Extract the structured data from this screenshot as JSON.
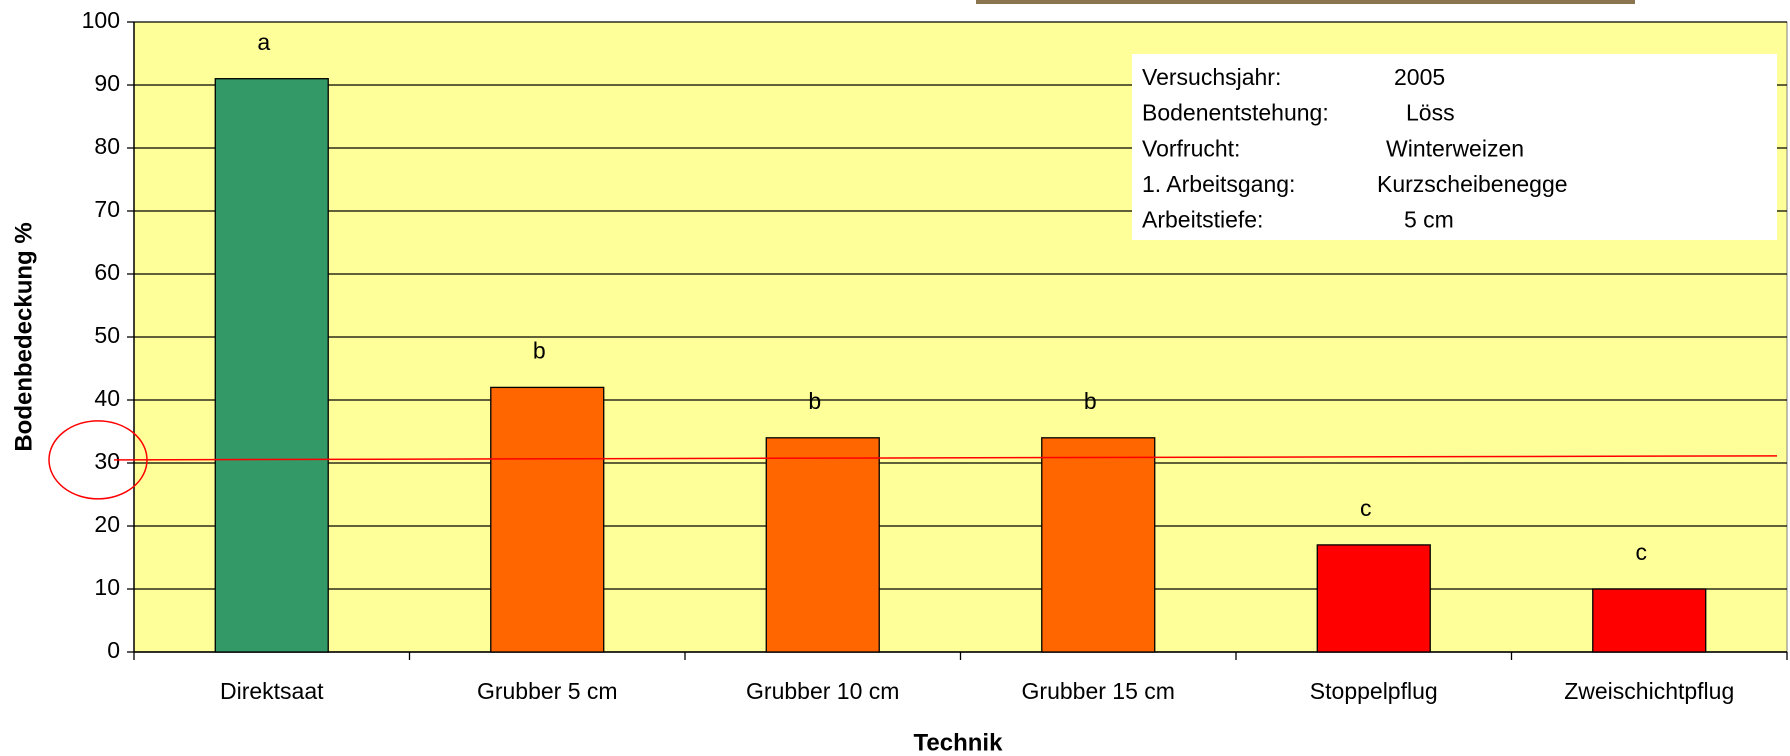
{
  "chart_data": {
    "type": "bar",
    "x_label": "Technik",
    "y_label": "Bodenbedeckung %",
    "categories": [
      "Direktsaat",
      "Grubber 5 cm",
      "Grubber 10 cm",
      "Grubber 15 cm",
      "Stoppelpflug",
      "Zweischichtpflug"
    ],
    "values": [
      91,
      42,
      34,
      34,
      17,
      10
    ],
    "colors": [
      "#339966",
      "#ff6600",
      "#ff6600",
      "#ff6600",
      "#ff0000",
      "#ff0000"
    ],
    "annotations": [
      "a",
      "b",
      "b",
      "b",
      "c",
      "c"
    ],
    "ylim": [
      0,
      100
    ],
    "yticks": [
      0,
      10,
      20,
      30,
      40,
      50,
      60,
      70,
      80,
      90,
      100
    ],
    "grid": true,
    "plot_background": "#ffff99",
    "reference_line": 30.5,
    "reference_color": "#ff0000",
    "info_box": [
      [
        "Versuchsjahr:",
        "2005"
      ],
      [
        "Bodenentstehung:",
        "Löss"
      ],
      [
        "Vorfrucht:",
        "Winterweizen"
      ],
      [
        "1. Arbeitsgang:",
        "Kurzscheibenegge"
      ],
      [
        "Arbeitstiefe:",
        "5 cm"
      ]
    ]
  }
}
